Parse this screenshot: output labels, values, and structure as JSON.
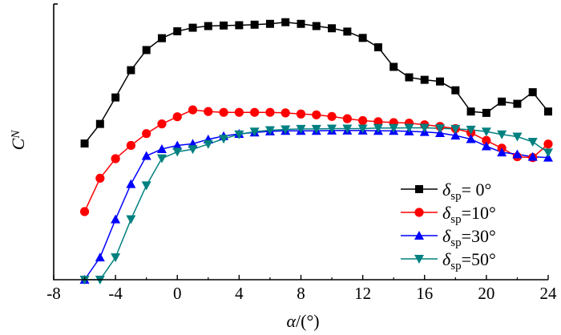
{
  "chart_data": {
    "type": "line",
    "title": "",
    "xlabel_symbol": "α",
    "xlabel_unit": "/(°)",
    "ylabel_symbol": "C",
    "ylabel_sub": "N",
    "xlim": [
      -8,
      24
    ],
    "ylim": [
      0,
      1
    ],
    "xticks": [
      "-8",
      "-4",
      "0",
      "4",
      "8",
      "12",
      "16",
      "20",
      "24"
    ],
    "y_tick_labels_shown": false,
    "legend_position": "bottom-right",
    "series": [
      {
        "name": "δsp=0°",
        "legend_symbol": "δ",
        "legend_sub": "sp",
        "legend_rest": "=  0°",
        "color": "#000000",
        "marker": "square",
        "x": [
          -6,
          -5,
          -4,
          -3,
          -2,
          -1,
          0,
          1,
          2,
          3,
          4,
          5,
          6,
          7,
          8,
          9,
          10,
          11,
          12,
          13,
          14,
          15,
          16,
          17,
          18,
          19,
          20,
          21,
          22,
          23,
          24
        ],
        "y": [
          0.494,
          0.565,
          0.661,
          0.76,
          0.833,
          0.876,
          0.901,
          0.914,
          0.92,
          0.922,
          0.923,
          0.925,
          0.928,
          0.934,
          0.928,
          0.92,
          0.912,
          0.9,
          0.877,
          0.843,
          0.772,
          0.734,
          0.725,
          0.719,
          0.687,
          0.61,
          0.605,
          0.646,
          0.638,
          0.68,
          0.61
        ]
      },
      {
        "name": "δsp=10°",
        "legend_symbol": "δ",
        "legend_sub": "sp",
        "legend_rest": "=10°",
        "color": "#ff0000",
        "marker": "circle",
        "x": [
          -6,
          -5,
          -4,
          -3,
          -2,
          -1,
          0,
          1,
          2,
          3,
          4,
          5,
          6,
          7,
          8,
          9,
          10,
          11,
          12,
          13,
          14,
          15,
          16,
          17,
          18,
          19,
          20,
          21,
          22,
          23,
          24
        ],
        "y": [
          0.247,
          0.368,
          0.439,
          0.487,
          0.53,
          0.565,
          0.591,
          0.616,
          0.61,
          0.607,
          0.607,
          0.607,
          0.607,
          0.605,
          0.601,
          0.598,
          0.592,
          0.584,
          0.577,
          0.573,
          0.57,
          0.568,
          0.562,
          0.556,
          0.548,
          0.533,
          0.505,
          0.477,
          0.446,
          0.443,
          0.492
        ]
      },
      {
        "name": "δsp=30°",
        "legend_symbol": "δ",
        "legend_sub": "sp",
        "legend_rest": "=30°",
        "color": "#0000ff",
        "marker": "triangle-up",
        "x": [
          -6,
          -5,
          -4,
          -3,
          -2,
          -1,
          0,
          1,
          2,
          3,
          4,
          5,
          6,
          7,
          8,
          9,
          10,
          11,
          12,
          13,
          14,
          15,
          16,
          17,
          18,
          19,
          20,
          21,
          22,
          23,
          24
        ],
        "y": [
          0.0,
          0.081,
          0.219,
          0.347,
          0.449,
          0.474,
          0.487,
          0.493,
          0.509,
          0.521,
          0.529,
          0.534,
          0.538,
          0.54,
          0.54,
          0.54,
          0.541,
          0.541,
          0.541,
          0.54,
          0.54,
          0.538,
          0.536,
          0.532,
          0.523,
          0.51,
          0.484,
          0.462,
          0.455,
          0.446,
          0.443
        ]
      },
      {
        "name": "δsp=50°",
        "legend_symbol": "δ",
        "legend_sub": "sp",
        "legend_rest": "=50°",
        "color": "#008080",
        "marker": "triangle-down",
        "x": [
          -6,
          -5,
          -4,
          -3,
          -2,
          -1,
          0,
          1,
          2,
          3,
          4,
          5,
          6,
          7,
          8,
          9,
          10,
          11,
          12,
          13,
          14,
          15,
          16,
          17,
          18,
          19,
          20,
          21,
          22,
          23,
          24
        ],
        "y": [
          0.0,
          0.0,
          0.081,
          0.219,
          0.342,
          0.44,
          0.464,
          0.473,
          0.492,
          0.511,
          0.527,
          0.537,
          0.542,
          0.545,
          0.547,
          0.547,
          0.548,
          0.548,
          0.548,
          0.55,
          0.55,
          0.551,
          0.551,
          0.549,
          0.547,
          0.544,
          0.537,
          0.527,
          0.519,
          0.5,
          0.461
        ]
      }
    ]
  }
}
